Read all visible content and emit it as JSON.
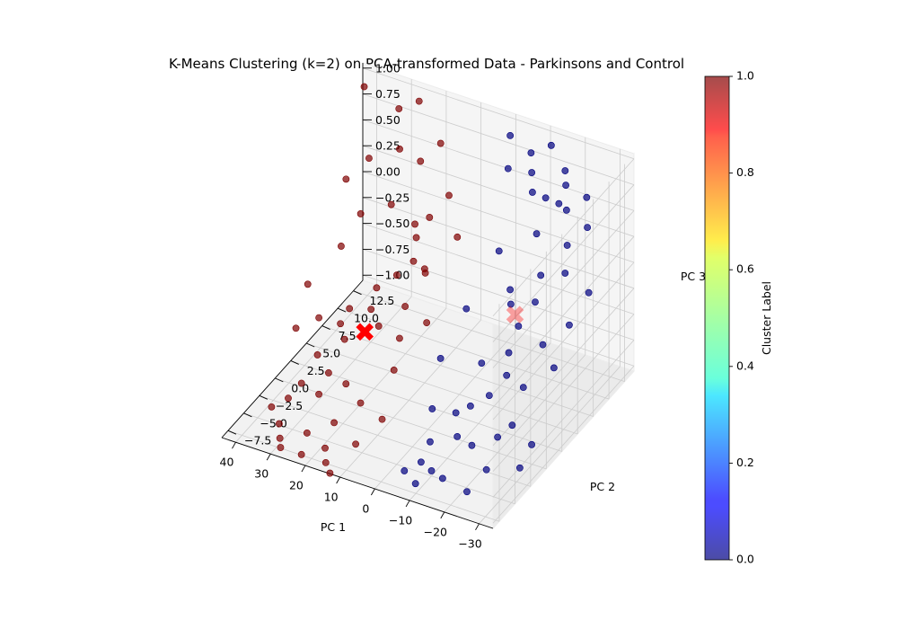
{
  "chart_data": {
    "type": "scatter",
    "projection": "3d",
    "title": "K-Means Clustering (k=2) on PCA-transformed Data - Parkinsons and Control",
    "xlabel": "PC 1",
    "ylabel": "PC 2",
    "zlabel": "PC 3",
    "xlim": [
      -34,
      44
    ],
    "ylim": [
      -8.5,
      14
    ],
    "zlim": [
      -1.05,
      1.05
    ],
    "xticks": [
      "−30",
      "−20",
      "−10",
      "0",
      "10",
      "20",
      "30",
      "40"
    ],
    "yticks": [
      "−7.5",
      "−5.0",
      "−2.5",
      "0.0",
      "2.5",
      "5.0",
      "7.5",
      "10.0",
      "12.5"
    ],
    "zticks": [
      "−1.00",
      "−0.75",
      "−0.50",
      "−0.25",
      "0.00",
      "0.25",
      "0.50",
      "0.75",
      "1.00"
    ],
    "xtick_values": [
      -30,
      -20,
      -10,
      0,
      10,
      20,
      30,
      40
    ],
    "ytick_values": [
      -7.5,
      -5,
      -2.5,
      0,
      2.5,
      5,
      7.5,
      10,
      12.5
    ],
    "ztick_values": [
      -1,
      -0.75,
      -0.5,
      -0.25,
      0,
      0.25,
      0.5,
      0.75,
      1
    ],
    "grid": true,
    "colormap": "jet",
    "colorbar": {
      "label": "Cluster Label",
      "ticks": [
        "0.0",
        "0.2",
        "0.4",
        "0.6",
        "0.8",
        "1.0"
      ],
      "tick_values": [
        0,
        0.2,
        0.4,
        0.6,
        0.8,
        1.0
      ],
      "range": [
        0,
        1
      ]
    },
    "colors": {
      "cluster_0": "#00007f",
      "cluster_1": "#7f0000",
      "centroid": "#ff0000"
    },
    "point_alpha": 0.7,
    "clusters": [
      {
        "label": 0,
        "points": [
          [
            -18,
            12,
            0.7
          ],
          [
            -14,
            11,
            0.6
          ],
          [
            -16,
            12,
            0.5
          ],
          [
            -20,
            11,
            0.55
          ],
          [
            -12,
            10,
            0.7
          ],
          [
            -10,
            11,
            0.8
          ],
          [
            -15,
            9,
            0.4
          ],
          [
            -22,
            10,
            0.3
          ],
          [
            -25,
            8,
            0.2
          ],
          [
            -18,
            8,
            0.1
          ],
          [
            -13,
            6,
            -0.1
          ],
          [
            -20,
            6,
            0.0
          ],
          [
            -28,
            7,
            -0.2
          ],
          [
            -24,
            5,
            -0.3
          ],
          [
            -16,
            4,
            -0.4
          ],
          [
            -10,
            3,
            -0.5
          ],
          [
            -22,
            3,
            -0.6
          ],
          [
            -14,
            2,
            -0.7
          ],
          [
            -8,
            0,
            -0.8
          ],
          [
            -20,
            0,
            -0.9
          ],
          [
            -28,
            1,
            -0.95
          ],
          [
            -12,
            -2,
            -0.85
          ],
          [
            -6,
            -3,
            -0.9
          ],
          [
            -18,
            -3,
            -0.8
          ],
          [
            -24,
            -4,
            -0.9
          ],
          [
            -30,
            -2,
            -0.95
          ],
          [
            -10,
            -5,
            -1.0
          ],
          [
            -4,
            -6,
            -1.0
          ],
          [
            -15,
            -6,
            -0.95
          ],
          [
            -8,
            12,
            0.9
          ],
          [
            -5,
            10,
            0.85
          ],
          [
            -26,
            11,
            0.45
          ],
          [
            -30,
            9,
            0.0
          ],
          [
            -2,
            5,
            -0.2
          ],
          [
            -6,
            8,
            0.2
          ],
          [
            -22,
            -6,
            -1.0
          ],
          [
            0,
            2,
            -0.5
          ],
          [
            -16,
            13,
            0.75
          ],
          [
            -11,
            7,
            -0.05
          ],
          [
            -19,
            2,
            -0.45
          ],
          [
            -26,
            -1,
            -0.65
          ],
          [
            -3,
            -1,
            -0.75
          ],
          [
            -9,
            -7,
            -1.0
          ],
          [
            -14,
            -1,
            -0.6
          ],
          [
            -7,
            -5,
            -0.95
          ],
          [
            -24,
            12,
            0.65
          ],
          [
            -17,
            5,
            -0.2
          ],
          [
            -29,
            4,
            -0.4
          ],
          [
            -2,
            12,
            1.0
          ],
          [
            -12,
            13,
            0.95
          ]
        ]
      },
      {
        "label": 1,
        "points": [
          [
            30,
            12,
            0.9
          ],
          [
            28,
            11,
            0.6
          ],
          [
            35,
            10,
            0.5
          ],
          [
            40,
            12,
            1.0
          ],
          [
            25,
            8,
            0.3
          ],
          [
            32,
            7,
            0.2
          ],
          [
            20,
            9,
            0.1
          ],
          [
            15,
            6,
            0.0
          ],
          [
            18,
            5,
            -0.1
          ],
          [
            22,
            4,
            -0.2
          ],
          [
            10,
            5,
            0.05
          ],
          [
            12,
            3,
            -0.2
          ],
          [
            8,
            4,
            0.1
          ],
          [
            28,
            3,
            -0.4
          ],
          [
            35,
            2,
            -0.5
          ],
          [
            16,
            1,
            -0.3
          ],
          [
            24,
            0,
            -0.45
          ],
          [
            30,
            -1,
            -0.6
          ],
          [
            38,
            0,
            -0.5
          ],
          [
            20,
            -2,
            -0.7
          ],
          [
            14,
            -3,
            -0.75
          ],
          [
            26,
            -3,
            -0.8
          ],
          [
            33,
            -4,
            -0.85
          ],
          [
            18,
            -5,
            -0.85
          ],
          [
            10,
            -6,
            -0.9
          ],
          [
            24,
            -6,
            -0.95
          ],
          [
            30,
            -7,
            -1.0
          ],
          [
            15,
            -8,
            -1.0
          ],
          [
            22,
            -8,
            -1.0
          ],
          [
            36,
            -5,
            -0.9
          ],
          [
            40,
            3,
            -0.3
          ],
          [
            6,
            8,
            0.2
          ],
          [
            12,
            10,
            0.4
          ],
          [
            26,
            13,
            0.95
          ],
          [
            18,
            12,
            0.7
          ],
          [
            8,
            -1,
            -0.5
          ],
          [
            4,
            2,
            -0.2
          ],
          [
            32,
            -6,
            -0.95
          ],
          [
            12,
            -9,
            -1.0
          ],
          [
            28,
            -8,
            -1.0
          ],
          [
            20,
            2,
            -0.25
          ],
          [
            34,
            5,
            0.0
          ],
          [
            16,
            7,
            0.15
          ],
          [
            22,
            11,
            0.55
          ],
          [
            38,
            8,
            0.4
          ],
          [
            6,
            -4,
            -0.75
          ],
          [
            10,
            1,
            -0.35
          ],
          [
            25,
            -2,
            -0.65
          ],
          [
            31,
            -3,
            -0.75
          ],
          [
            17,
            -7,
            -0.95
          ],
          [
            27,
            1,
            -0.4
          ],
          [
            14,
            8,
            0.3
          ]
        ]
      }
    ],
    "centroids": [
      {
        "label": 0,
        "position": [
          -16,
          5,
          -0.1
        ],
        "alpha": 0.35
      },
      {
        "label": 1,
        "position": [
          20,
          1,
          -0.4
        ],
        "alpha": 1.0
      }
    ]
  }
}
